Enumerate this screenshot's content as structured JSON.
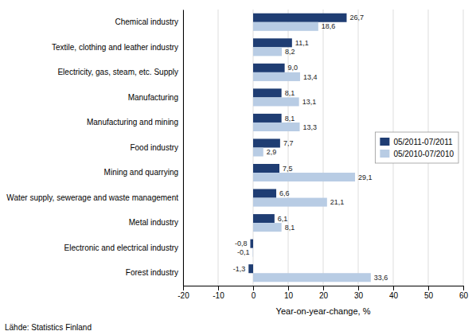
{
  "chart_data": {
    "type": "bar",
    "orientation": "horizontal",
    "categories": [
      "Forest industry",
      "Electronic and electrical industry",
      "Metal industry",
      "Water supply, sewerage and waste management",
      "Mining and quarrying",
      "Food industry",
      "Manufacturing and mining",
      "Manufacturing",
      "Electricity, gas, steam, etc. Supply",
      "Textile, clothing and leather industry",
      "Chemical industry"
    ],
    "series": [
      {
        "name": "05/2011-07/2011",
        "color": "#1F3D73",
        "values": [
          -1.3,
          -0.8,
          6.1,
          6.6,
          7.5,
          7.7,
          8.1,
          8.1,
          9.0,
          11.1,
          26.7
        ],
        "value_labels": [
          "-1,3",
          "-0,8",
          "6,1",
          "6,6",
          "7,5",
          "7,7",
          "8,1",
          "8,1",
          "9,0",
          "11,1",
          "26,7"
        ]
      },
      {
        "name": "05/2010-07/2010",
        "color": "#B8CCE4",
        "values": [
          33.6,
          -0.1,
          8.1,
          21.1,
          29.1,
          2.9,
          13.3,
          13.1,
          13.4,
          8.2,
          18.6
        ],
        "value_labels": [
          "33,6",
          "-0,1",
          "8,1",
          "21,1",
          "29,1",
          "2,9",
          "13,3",
          "13,1",
          "13,4",
          "8,2",
          "18,6"
        ]
      }
    ],
    "xlabel": "Year-on-year-change, %",
    "xlim": [
      -20,
      60
    ],
    "xticks": [
      -20,
      -10,
      0,
      10,
      20,
      30,
      40,
      50,
      60
    ],
    "grid": true,
    "legend": "right",
    "data_labels": true,
    "annotations": [
      "Lähde: Statistics Finland"
    ]
  }
}
